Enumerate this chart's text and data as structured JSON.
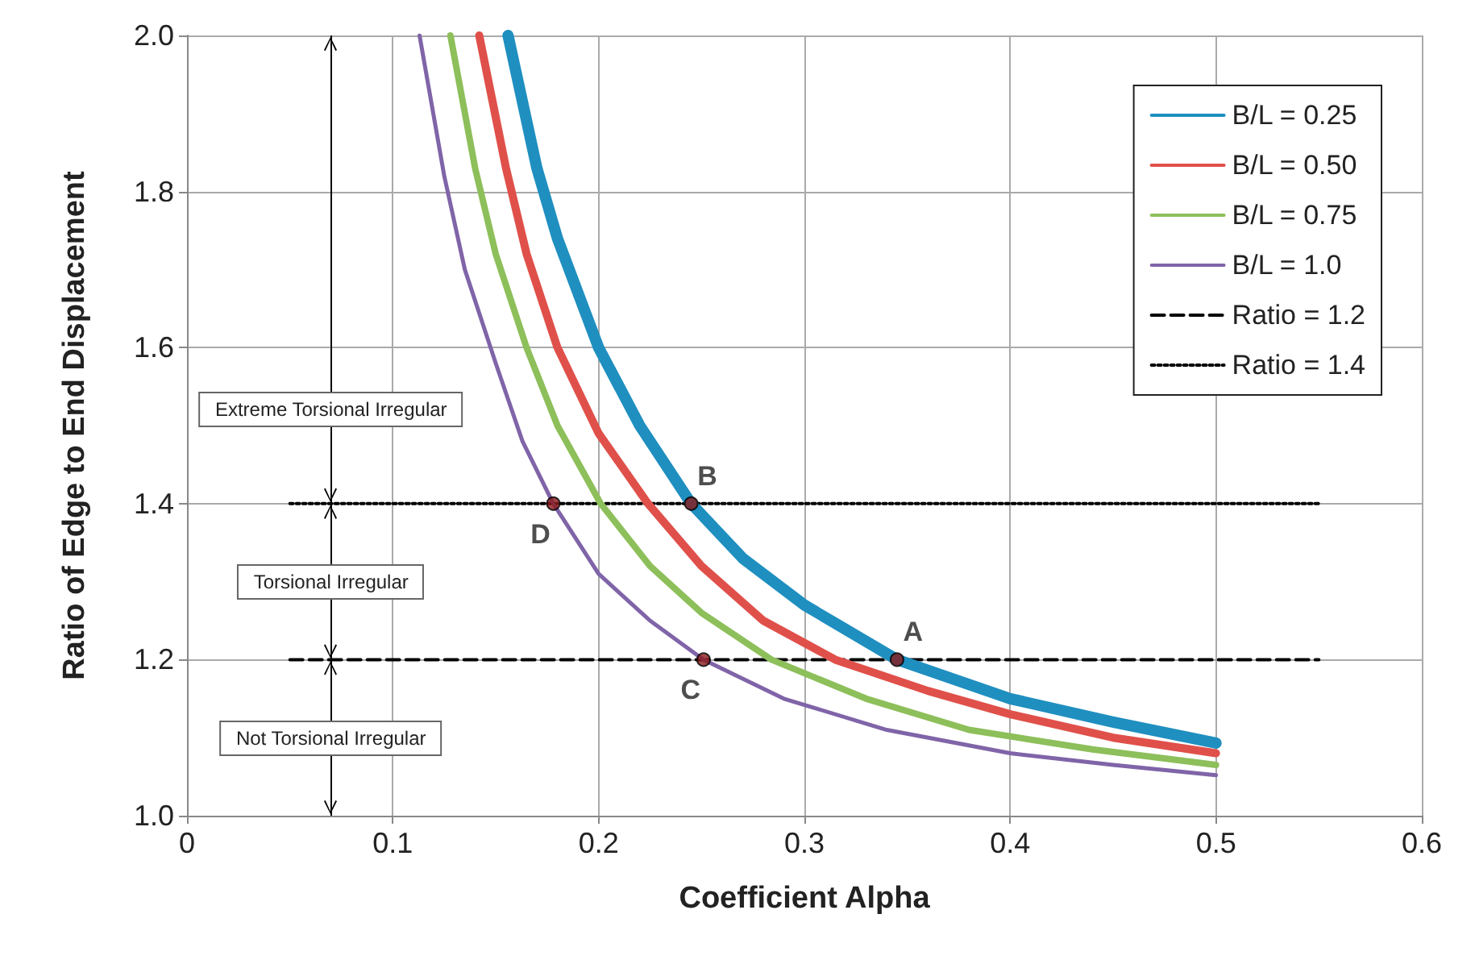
{
  "chart_data": {
    "type": "line",
    "xlabel": "Coefficient Alpha",
    "ylabel": "Ratio of Edge to End Displacement",
    "xlim": [
      0,
      0.6
    ],
    "xticks": [
      0,
      0.1,
      0.2,
      0.3,
      0.4,
      0.5,
      0.6
    ],
    "ylim": [
      1,
      2
    ],
    "yticks": [
      {
        "value": 1,
        "label": "1.0"
      },
      1.2,
      1.4,
      1.6,
      1.8,
      {
        "value": 2,
        "label": "2.0"
      }
    ],
    "grid": true,
    "legend": "top right",
    "line_style": "solid",
    "marker": "none",
    "series": [
      {
        "name": "B/L = 0.25",
        "color": "#1f8fc0",
        "x": [
          0.156,
          0.17,
          0.18,
          0.2,
          0.22,
          0.245,
          0.27,
          0.3,
          0.345,
          0.4,
          0.45,
          0.5
        ],
        "values": [
          2.0,
          1.83,
          1.74,
          1.6,
          1.5,
          1.4,
          1.33,
          1.27,
          1.2,
          1.15,
          1.12,
          1.093
        ]
      },
      {
        "name": "B/L = 0.50",
        "color": "#e0504a",
        "x": [
          0.142,
          0.155,
          0.165,
          0.18,
          0.2,
          0.224,
          0.25,
          0.28,
          0.315,
          0.36,
          0.4,
          0.45,
          0.5
        ],
        "values": [
          2.0,
          1.83,
          1.72,
          1.6,
          1.49,
          1.4,
          1.32,
          1.25,
          1.2,
          1.16,
          1.13,
          1.1,
          1.08
        ]
      },
      {
        "name": "B/L = 0.75",
        "color": "#8dbf5a",
        "x": [
          0.128,
          0.14,
          0.15,
          0.165,
          0.18,
          0.201,
          0.225,
          0.25,
          0.284,
          0.33,
          0.38,
          0.44,
          0.5
        ],
        "values": [
          2.0,
          1.83,
          1.72,
          1.6,
          1.5,
          1.4,
          1.32,
          1.26,
          1.2,
          1.15,
          1.11,
          1.085,
          1.065
        ]
      },
      {
        "name": "B/L = 1.0",
        "color": "#8064a8",
        "x": [
          0.113,
          0.125,
          0.135,
          0.15,
          0.163,
          0.178,
          0.2,
          0.225,
          0.251,
          0.29,
          0.34,
          0.4,
          0.45,
          0.5
        ],
        "values": [
          2.0,
          1.82,
          1.7,
          1.58,
          1.48,
          1.4,
          1.31,
          1.25,
          1.2,
          1.15,
          1.11,
          1.08,
          1.065,
          1.052
        ]
      },
      {
        "name": "Ratio = 1.2",
        "color": "#000000",
        "line_style": "dashed",
        "x": [
          0.05,
          0.55
        ],
        "values": [
          1.2,
          1.2
        ]
      },
      {
        "name": "Ratio = 1.4",
        "color": "#000000",
        "line_style": "dotted",
        "x": [
          0.05,
          0.55
        ],
        "values": [
          1.4,
          1.4
        ]
      }
    ],
    "ref_lines": [
      {
        "axis": "x",
        "value": 0.07,
        "color": "#000000",
        "line_style": "solid"
      }
    ],
    "annotations": [
      {
        "text": "A",
        "x": 0.345,
        "y": 1.2
      },
      {
        "text": "B",
        "x": 0.245,
        "y": 1.4
      },
      {
        "text": "C",
        "x": 0.251,
        "y": 1.2
      },
      {
        "text": "D",
        "x": 0.178,
        "y": 1.4
      },
      "Extreme Torsional Irregular",
      "Torsional Irregular",
      "Not Torsional Irregular"
    ]
  }
}
